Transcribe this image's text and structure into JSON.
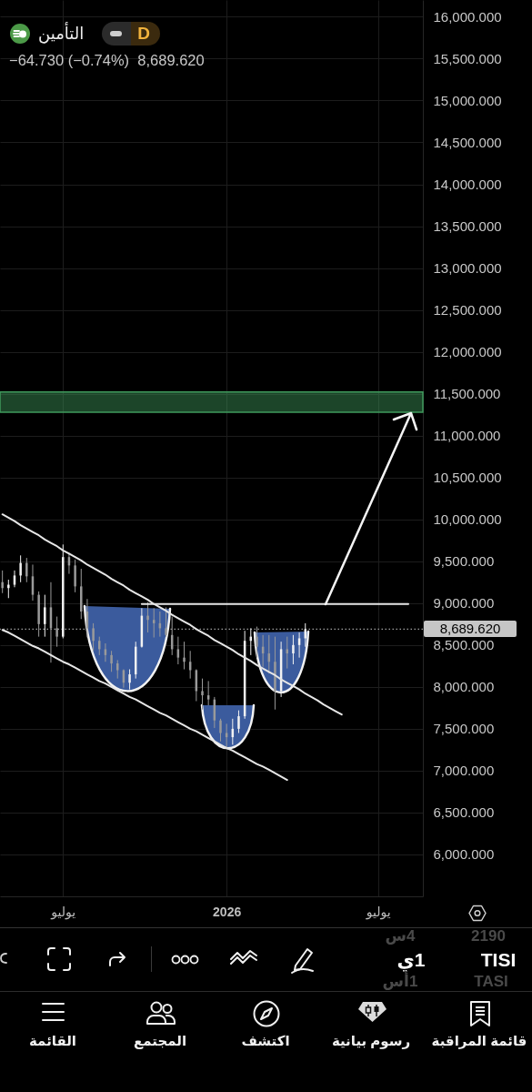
{
  "chart_data": {
    "type": "candlestick",
    "title": "التأمين",
    "subtitle": "−64.730 (−0.74%)  8,689.620",
    "categories": [
      null,
      null,
      null,
      null,
      null,
      null,
      null,
      null,
      null,
      null,
      "يوليو",
      null,
      null,
      null,
      null,
      null,
      null,
      null,
      null,
      null,
      null,
      null,
      null,
      null,
      null,
      null,
      null,
      null,
      null,
      null,
      null,
      null,
      null,
      null,
      null,
      null,
      null,
      "2026",
      null,
      null,
      null,
      null,
      null,
      null,
      null,
      null,
      null,
      null,
      null,
      null,
      null,
      null,
      null,
      null,
      null,
      null,
      null,
      null,
      null,
      null,
      null,
      null,
      "يوليو",
      null,
      null,
      null,
      null,
      null,
      null,
      null
    ],
    "ohlc": [
      [
        9250,
        9390,
        9120,
        9180
      ],
      [
        9180,
        9280,
        9060,
        9220
      ],
      [
        9220,
        9390,
        9190,
        9330
      ],
      [
        9330,
        9570,
        9250,
        9480
      ],
      [
        9480,
        9540,
        9250,
        9320
      ],
      [
        9320,
        9460,
        9030,
        9100
      ],
      [
        9100,
        9140,
        8600,
        8750
      ],
      [
        8750,
        9100,
        8600,
        8950
      ],
      [
        8950,
        9250,
        8290,
        8700
      ],
      [
        8700,
        8840,
        8480,
        8600
      ],
      [
        8600,
        9700,
        8580,
        9550
      ],
      [
        9550,
        9600,
        9350,
        9450
      ],
      [
        9450,
        9520,
        9130,
        9200
      ],
      [
        9200,
        9410,
        8810,
        8900
      ],
      [
        8900,
        9050,
        8590,
        8700
      ],
      [
        8700,
        8760,
        8430,
        8550
      ],
      [
        8550,
        8600,
        8380,
        8450
      ],
      [
        8450,
        8520,
        8300,
        8380
      ],
      [
        8380,
        8430,
        8180,
        8280
      ],
      [
        8280,
        8320,
        8100,
        8200
      ],
      [
        8200,
        8210,
        7990,
        8050
      ],
      [
        8050,
        8210,
        7970,
        8150
      ],
      [
        8150,
        8540,
        8100,
        8480
      ],
      [
        8480,
        8940,
        8470,
        8850
      ],
      [
        8850,
        9010,
        8650,
        8800
      ],
      [
        8800,
        8940,
        8590,
        8760
      ],
      [
        8760,
        8900,
        8600,
        8700
      ],
      [
        8700,
        8950,
        8600,
        8620
      ],
      [
        8620,
        8840,
        8380,
        8450
      ],
      [
        8450,
        8600,
        8270,
        8350
      ],
      [
        8350,
        8540,
        8210,
        8300
      ],
      [
        8300,
        8430,
        8100,
        8200
      ],
      [
        8200,
        8210,
        7830,
        7950
      ],
      [
        7950,
        8100,
        7730,
        7900
      ],
      [
        7900,
        8070,
        7780,
        7850
      ],
      [
        7850,
        7880,
        7510,
        7600
      ],
      [
        7600,
        7620,
        7350,
        7450
      ],
      [
        7450,
        7560,
        7260,
        7400
      ],
      [
        7400,
        7620,
        7310,
        7500
      ],
      [
        7500,
        7720,
        7450,
        7650
      ],
      [
        7650,
        8670,
        7620,
        8550
      ],
      [
        8550,
        8700,
        8380,
        8600
      ],
      [
        8600,
        8720,
        8350,
        8480
      ],
      [
        8480,
        8620,
        8240,
        8400
      ],
      [
        8400,
        8620,
        8160,
        8300
      ],
      [
        8300,
        8600,
        7730,
        7950
      ],
      [
        7950,
        8540,
        7880,
        8450
      ],
      [
        8450,
        8600,
        8220,
        8400
      ],
      [
        8400,
        8620,
        8270,
        8500
      ],
      [
        8500,
        8650,
        8350,
        8580
      ],
      [
        8580,
        8760,
        8480,
        8689.62
      ],
      null,
      null,
      null,
      null,
      null,
      null,
      null,
      null,
      null,
      null,
      null,
      null,
      null,
      null,
      null,
      null,
      null,
      null,
      null
    ],
    "colors": [
      "#9a9a9a",
      "#f2f2f2",
      "#f2f2f2",
      "#f2f2f2",
      "#9a9a9a",
      "#9a9a9a",
      "#9a9a9a",
      "#f2f2f2",
      "#9a9a9a",
      "#9a9a9a",
      "#f2f2f2",
      "#9a9a9a",
      "#9a9a9a",
      "#9a9a9a",
      "#9a9a9a",
      "#9a9a9a",
      "#9a9a9a",
      "#9a9a9a",
      "#9a9a9a",
      "#9a9a9a",
      "#9a9a9a",
      "#f2f2f2",
      "#f2f2f2",
      "#f2f2f2",
      "#9a9a9a",
      "#9a9a9a",
      "#9a9a9a",
      "#9a9a9a",
      "#9a9a9a",
      "#9a9a9a",
      "#9a9a9a",
      "#9a9a9a",
      "#9a9a9a",
      "#9a9a9a",
      "#9a9a9a",
      "#9a9a9a",
      "#9a9a9a",
      "#9a9a9a",
      "#f2f2f2",
      "#f2f2f2",
      "#f2f2f2",
      "#f2f2f2",
      "#9a9a9a",
      "#9a9a9a",
      "#9a9a9a",
      "#9a9a9a",
      "#f2f2f2",
      "#9a9a9a",
      "#f2f2f2",
      "#f2f2f2",
      "#f2f2f2",
      null,
      null,
      null,
      null,
      null,
      null,
      null,
      null,
      null,
      null,
      null,
      null,
      null,
      null,
      null,
      null,
      null,
      null,
      null
    ],
    "series": [
      {
        "type": "line",
        "color": "#e6e6e6",
        "values": [
          10060,
          10020,
          9980,
          9930,
          9890,
          9850,
          9810,
          9760,
          9720,
          9680,
          9630,
          9590,
          9550,
          9510,
          9460,
          9420,
          9380,
          9340,
          9290,
          9250,
          9210,
          9160,
          9120,
          9080,
          9040,
          8990,
          8950,
          8910,
          8860,
          8820,
          8780,
          8740,
          8690,
          8650,
          8610,
          8560,
          8520,
          8480,
          8440,
          8390,
          8350,
          8310,
          8260,
          8220,
          8180,
          8140,
          8090,
          8050,
          8010,
          7970,
          7920,
          7880,
          7840,
          7790,
          7750,
          7710,
          7670,
          null,
          null,
          null,
          null,
          null,
          null,
          null,
          null,
          null,
          null,
          null,
          null,
          null
        ]
      },
      {
        "type": "line",
        "color": "#e6e6e6",
        "values": [
          8680,
          8650,
          8610,
          8570,
          8530,
          8490,
          8460,
          8420,
          8380,
          8340,
          8300,
          8270,
          8230,
          8190,
          8150,
          8110,
          8070,
          8040,
          8000,
          7960,
          7920,
          7880,
          7850,
          7810,
          7770,
          7730,
          7690,
          7660,
          7620,
          7580,
          7540,
          7500,
          7470,
          7430,
          7390,
          7350,
          7310,
          7270,
          7240,
          7200,
          7160,
          7120,
          7080,
          7050,
          7010,
          6970,
          6930,
          6890,
          null,
          null,
          null,
          null,
          null,
          null,
          null,
          null,
          null,
          null,
          null,
          null,
          null,
          null,
          null,
          null,
          null,
          null,
          null,
          null,
          null,
          null
        ]
      },
      {
        "type": "line",
        "color": "#e6e6e6",
        "values": [
          null,
          null,
          null,
          null,
          null,
          null,
          null,
          null,
          null,
          null,
          null,
          null,
          null,
          null,
          null,
          null,
          null,
          null,
          null,
          null,
          null,
          null,
          null,
          8990,
          8990,
          8990,
          8990,
          8990,
          8990,
          8990,
          8990,
          8990,
          8990,
          8990,
          8990,
          8990,
          8990,
          8990,
          8990,
          8990,
          8990,
          8990,
          8990,
          8990,
          8990,
          8990,
          8990,
          8990,
          8990,
          8990,
          8990,
          8990,
          8990,
          8990,
          8990,
          8990,
          8990,
          8990,
          8990,
          8990,
          8990,
          8990,
          8990,
          8990,
          8990,
          8990,
          8990,
          8990,
          null,
          null
        ]
      }
    ],
    "ylim": [
      5500,
      16200
    ],
    "yticks": [
      {
        "value": 6000,
        "label": "6,000.000"
      },
      {
        "value": 6500,
        "label": "6,500.000"
      },
      {
        "value": 7000,
        "label": "7,000.000"
      },
      {
        "value": 7500,
        "label": "7,500.000"
      },
      {
        "value": 8000,
        "label": "8,000.000"
      },
      {
        "value": 8500,
        "label": "8,500.000"
      },
      {
        "value": 9000,
        "label": "9,000.000"
      },
      {
        "value": 9500,
        "label": "9,500.000"
      },
      {
        "value": 10000,
        "label": "10,000.000"
      },
      {
        "value": 10500,
        "label": "10,500.000"
      },
      {
        "value": 11000,
        "label": "11,000.000"
      },
      {
        "value": 11500,
        "label": "11,500.000"
      },
      {
        "value": 12000,
        "label": "12,000.000"
      },
      {
        "value": 12500,
        "label": "12,500.000"
      },
      {
        "value": 13000,
        "label": "13,000.000"
      },
      {
        "value": 13500,
        "label": "13,500.000"
      },
      {
        "value": 14000,
        "label": "14,000.000"
      },
      {
        "value": 14500,
        "label": "14,500.000"
      },
      {
        "value": 15000,
        "label": "15,000.000"
      },
      {
        "value": 15500,
        "label": "15,500.000"
      },
      {
        "value": 16000,
        "label": "16,000.000"
      }
    ],
    "grid": true,
    "ref_lines": [
      {
        "axis": "y",
        "value": 8689.62,
        "label": "8,689.620",
        "color": "#9e9e9e",
        "line_style": "dotted"
      }
    ],
    "bands": [
      {
        "axis": "y",
        "from": 11280,
        "to": 11520,
        "color": "#3f9a5c"
      }
    ],
    "annotations": [
      "D",
      "2190",
      "4س",
      "TISI",
      "1ي",
      "TASI",
      "1أس",
      "قائمة المراقبة",
      "رسوم بيانية",
      "اكتشف",
      "المجتمع",
      "القائمة"
    ]
  }
}
